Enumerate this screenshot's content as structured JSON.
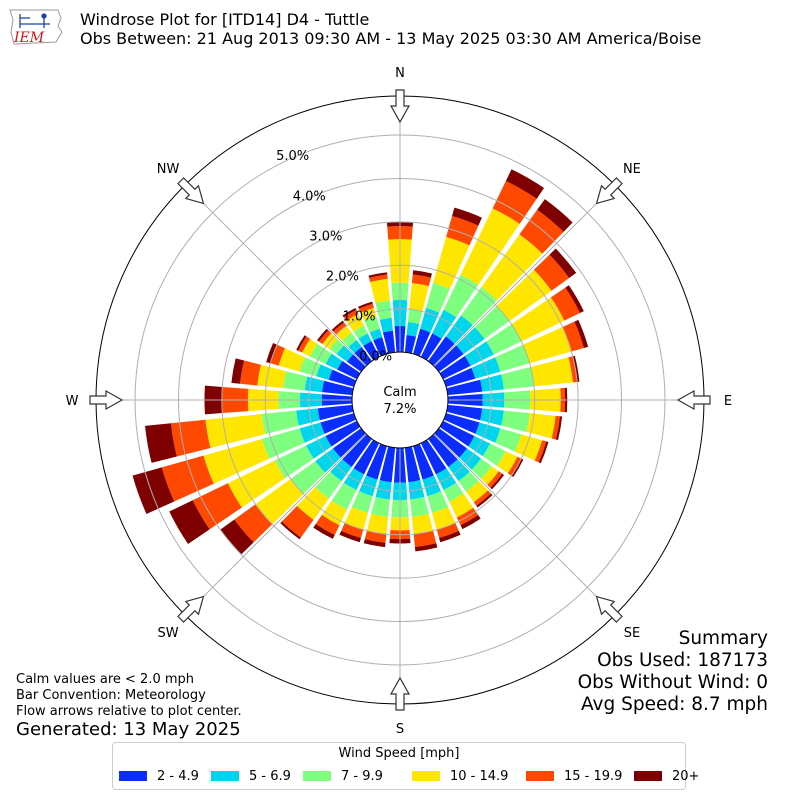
{
  "header": {
    "logo_text": "IEM",
    "title_line1": "Windrose Plot for [ITD14] D4 - Tuttle",
    "title_line2": "Obs Between: 21 Aug 2013 09:30 AM - 13 May 2025 03:30 AM America/Boise"
  },
  "notes": {
    "calm_note": "Calm values are < 2.0 mph",
    "bar_convention": "Bar Convention: Meteorology",
    "flow_note": "Flow arrows relative to plot center.",
    "generated": "Generated: 13 May 2025"
  },
  "summary": {
    "title": "Summary",
    "obs_used": "Obs Used: 187173",
    "obs_without_wind": "Obs Without Wind: 0",
    "avg_speed": "Avg Speed: 8.7 mph"
  },
  "chart_data": {
    "type": "windrose",
    "calm_label": "Calm",
    "calm_value": "7.2%",
    "radial_ticks": [
      0,
      1,
      2,
      3,
      4,
      5
    ],
    "radial_tick_labels": [
      "0.0%",
      "1.0%",
      "2.0%",
      "3.0%",
      "4.0%",
      "5.0%"
    ],
    "r_max": 5.9,
    "direction_labels": [
      {
        "label": "N",
        "deg": 0
      },
      {
        "label": "NE",
        "deg": 45
      },
      {
        "label": "E",
        "deg": 90
      },
      {
        "label": "SE",
        "deg": 135
      },
      {
        "label": "S",
        "deg": 180
      },
      {
        "label": "SW",
        "deg": 225
      },
      {
        "label": "W",
        "deg": 270
      },
      {
        "label": "NW",
        "deg": 315
      }
    ],
    "legend_title": "Wind Speed [mph]",
    "bins": [
      "2 - 4.9",
      "5 - 6.9",
      "7 - 9.9",
      "10 - 14.9",
      "15 - 19.9",
      "20+"
    ],
    "colors": [
      "#0a2dfb",
      "#00d5ee",
      "#7fff7f",
      "#ffe600",
      "#ff4800",
      "#7f0000"
    ],
    "directions_deg": [
      0,
      10,
      20,
      30,
      40,
      50,
      60,
      70,
      80,
      90,
      100,
      110,
      120,
      130,
      140,
      150,
      160,
      170,
      180,
      190,
      200,
      210,
      220,
      230,
      240,
      250,
      260,
      270,
      280,
      290,
      300,
      310,
      320,
      330,
      340,
      350
    ],
    "cumulative_percent": [
      [
        0.6,
        1.2,
        1.6,
        2.6,
        2.9,
        3.0
      ],
      [
        0.4,
        0.7,
        1.0,
        1.6,
        1.8,
        1.9
      ],
      [
        0.6,
        1.1,
        1.7,
        2.8,
        3.3,
        3.5
      ],
      [
        0.6,
        1.2,
        2.1,
        3.8,
        4.5,
        4.8
      ],
      [
        0.7,
        1.3,
        2.1,
        3.6,
        4.3,
        4.6
      ],
      [
        0.7,
        1.3,
        2.0,
        3.2,
        3.7,
        3.9
      ],
      [
        0.7,
        1.3,
        2.0,
        3.1,
        3.5,
        3.6
      ],
      [
        0.7,
        1.3,
        2.0,
        3.0,
        3.3,
        3.4
      ],
      [
        0.8,
        1.3,
        2.0,
        2.9,
        3.0,
        3.05
      ],
      [
        0.8,
        1.3,
        1.9,
        2.6,
        2.7,
        2.75
      ],
      [
        0.8,
        1.3,
        1.9,
        2.5,
        2.6,
        2.65
      ],
      [
        0.8,
        1.3,
        1.8,
        2.3,
        2.4,
        2.45
      ],
      [
        0.8,
        1.2,
        1.6,
        1.9,
        2.0,
        2.05
      ],
      [
        0.8,
        1.2,
        1.5,
        1.7,
        1.8,
        1.85
      ],
      [
        0.8,
        1.2,
        1.5,
        1.8,
        1.9,
        1.95
      ],
      [
        0.8,
        1.2,
        1.5,
        1.9,
        2.1,
        2.2
      ],
      [
        0.8,
        1.2,
        1.6,
        2.0,
        2.2,
        2.3
      ],
      [
        0.8,
        1.2,
        1.6,
        2.0,
        2.3,
        2.4
      ],
      [
        0.8,
        1.2,
        1.6,
        1.9,
        2.1,
        2.2
      ],
      [
        0.8,
        1.2,
        1.6,
        2.0,
        2.2,
        2.3
      ],
      [
        0.8,
        1.2,
        1.6,
        2.0,
        2.2,
        2.3
      ],
      [
        0.8,
        1.2,
        1.7,
        2.1,
        2.35,
        2.45
      ],
      [
        0.8,
        1.2,
        1.7,
        2.3,
        2.8,
        2.85
      ],
      [
        0.8,
        1.3,
        2.0,
        3.0,
        3.6,
        4.0
      ],
      [
        0.8,
        1.3,
        2.1,
        3.3,
        4.2,
        4.8
      ],
      [
        0.8,
        1.3,
        2.2,
        3.6,
        4.6,
        5.3
      ],
      [
        0.8,
        1.3,
        2.1,
        3.4,
        4.2,
        4.8
      ],
      [
        0.7,
        1.2,
        1.7,
        2.4,
        3.0,
        3.4
      ],
      [
        0.7,
        1.1,
        1.6,
        2.2,
        2.6,
        2.8
      ],
      [
        0.6,
        0.9,
        1.3,
        1.8,
        2.0,
        2.1
      ],
      [
        0.5,
        0.8,
        1.2,
        1.4,
        1.5,
        1.55
      ],
      [
        0.4,
        0.7,
        0.9,
        1.1,
        1.2,
        1.25
      ],
      [
        0.4,
        0.6,
        0.8,
        1.0,
        1.1,
        1.15
      ],
      [
        0.4,
        0.6,
        0.8,
        1.1,
        1.2,
        1.25
      ],
      [
        0.4,
        0.6,
        0.9,
        1.1,
        1.2,
        1.25
      ],
      [
        0.5,
        0.8,
        1.2,
        1.7,
        1.8,
        1.85
      ]
    ]
  }
}
